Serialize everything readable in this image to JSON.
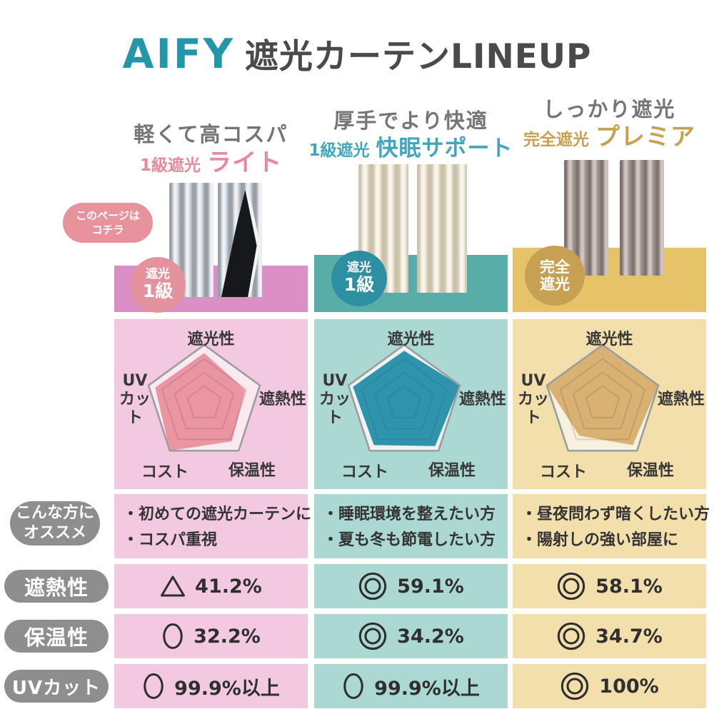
{
  "title": {
    "brand": "AIFY",
    "heading": "遮光カーテンLINEUP"
  },
  "page_badge": {
    "line1": "このページは",
    "line2": "コチラ"
  },
  "row_labels": {
    "recommend_line1": "こんな方に",
    "recommend_line2": "オススメ",
    "heat_shield": "遮熱性",
    "heat_retention": "保温性",
    "uv_cut": "UVカット"
  },
  "radar_axis_display": {
    "top": "遮光性",
    "right": "遮熱性",
    "bottom_right": "保温性",
    "bottom_left": "コスト",
    "left_line1": "UV",
    "left_line2": "カット"
  },
  "columns": [
    {
      "catch": "軽くて高コスパ",
      "grade": "1級遮光",
      "name": "ライト",
      "badge": {
        "line1": "遮光",
        "line2": "1級"
      },
      "recommend": [
        "・初めての遮光カーテンに",
        "・コスパ重視"
      ],
      "heat_shield": {
        "icon": "triangle",
        "value": "41.2%"
      },
      "heat_retention": {
        "icon": "circle",
        "value": "32.2%"
      },
      "uv_cut": {
        "icon": "circle",
        "value": "99.9%以上"
      },
      "colors": {
        "accent": "#e8899a",
        "band": "#da90c4",
        "cell_bg": "#f3c9e2",
        "badge_bg": "#e4929d",
        "radar_bg": "#fbe9f2",
        "radar_fill": "#eb95a3"
      }
    },
    {
      "catch": "厚手でより快適",
      "grade": "1級遮光",
      "name": "快眠サポート",
      "badge": {
        "line1": "遮光",
        "line2": "1級"
      },
      "recommend": [
        "・睡眠環境を整えたい方",
        "・夏も冬も節電したい方"
      ],
      "heat_shield": {
        "icon": "double-circle",
        "value": "59.1%"
      },
      "heat_retention": {
        "icon": "double-circle",
        "value": "34.2%"
      },
      "uv_cut": {
        "icon": "circle",
        "value": "99.9%以上"
      },
      "colors": {
        "accent": "#43a6c0",
        "band": "#58ada8",
        "cell_bg": "#abd8d2",
        "badge_bg": "#2d8fa2",
        "radar_bg": "#eef2f0",
        "radar_fill": "#2e94ad"
      }
    },
    {
      "catch": "しっかり遮光",
      "grade": "完全遮光",
      "name": "プレミア",
      "badge": {
        "line1": "完全",
        "line2": "遮光"
      },
      "recommend": [
        "・昼夜問わず暗くしたい方",
        "・陽射しの強い部屋に"
      ],
      "heat_shield": {
        "icon": "double-circle",
        "value": "58.1%"
      },
      "heat_retention": {
        "icon": "double-circle",
        "value": "34.7%"
      },
      "uv_cut": {
        "icon": "double-circle",
        "value": "100%"
      },
      "colors": {
        "accent": "#c9a050",
        "band": "#e6c369",
        "cell_bg": "#f2dfab",
        "badge_bg": "#c7a053",
        "radar_bg": "#f7f1de",
        "radar_fill": "#d8b173"
      }
    }
  ],
  "chart_data": [
    {
      "type": "radar",
      "title": "1級遮光 ライト",
      "axes": [
        "遮光性",
        "遮熱性",
        "保温性",
        "コスト",
        "UVカット"
      ],
      "max": 5,
      "values": [
        4.3,
        3.7,
        4.0,
        5.0,
        4.4
      ]
    },
    {
      "type": "radar",
      "title": "1級遮光 快眠サポート",
      "axes": [
        "遮光性",
        "遮熱性",
        "保温性",
        "コスト",
        "UVカット"
      ],
      "max": 5,
      "values": [
        4.5,
        5.0,
        4.5,
        4.4,
        4.6
      ]
    },
    {
      "type": "radar",
      "title": "完全遮光 プレミア",
      "axes": [
        "遮光性",
        "遮熱性",
        "保温性",
        "コスト",
        "UVカット"
      ],
      "max": 5,
      "values": [
        5.0,
        5.0,
        4.4,
        3.4,
        5.0
      ]
    }
  ]
}
